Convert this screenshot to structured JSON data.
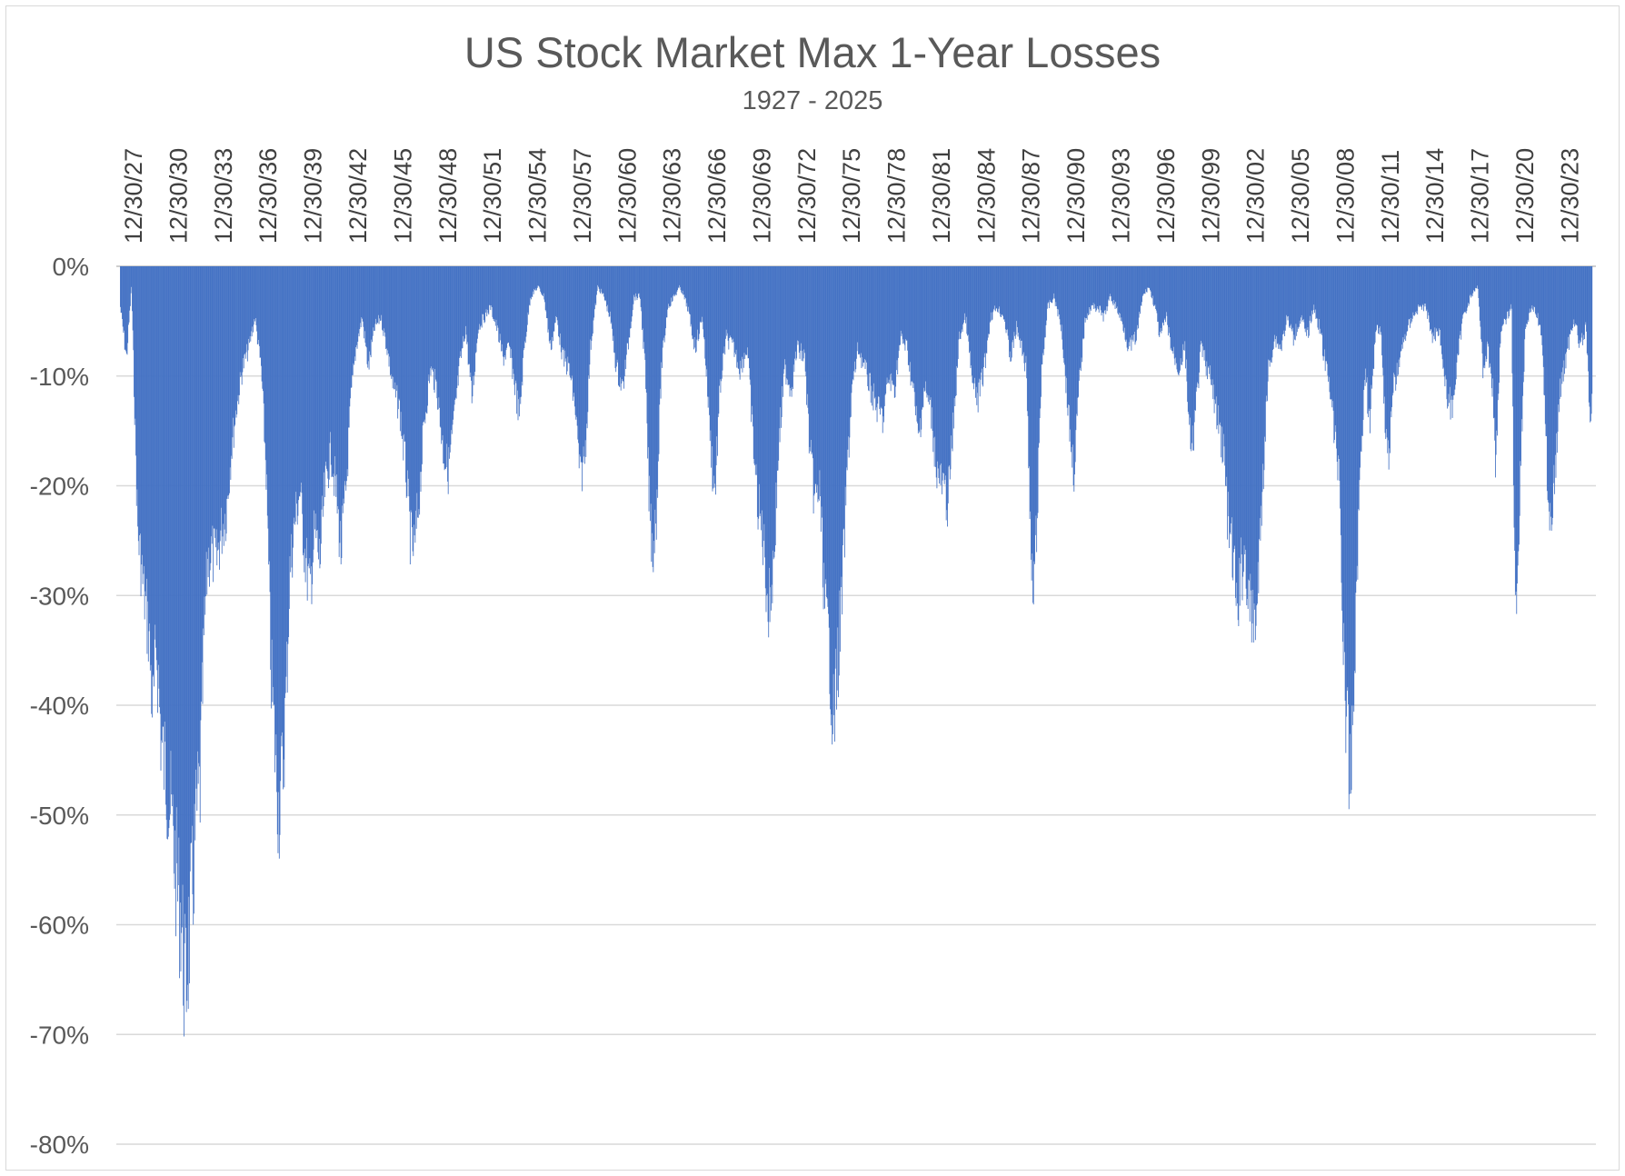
{
  "chart_data": {
    "type": "bar",
    "title": "US Stock Market Max 1-Year Losses",
    "subtitle": "1927 - 2025",
    "xlabel": "",
    "ylabel": "",
    "ylim": [
      -0.8,
      0
    ],
    "y_ticks": [
      0,
      -0.1,
      -0.2,
      -0.3,
      -0.4,
      -0.5,
      -0.6,
      -0.7,
      -0.8
    ],
    "y_tick_labels": [
      "0%",
      "-10%",
      "-20%",
      "-30%",
      "-40%",
      "-50%",
      "-60%",
      "-70%",
      "-80%"
    ],
    "x_range": [
      "1927-01",
      "2025-06"
    ],
    "x_tick_labels": [
      "12/30/27",
      "12/30/30",
      "12/30/33",
      "12/30/36",
      "12/30/39",
      "12/30/42",
      "12/30/45",
      "12/30/48",
      "12/30/51",
      "12/30/54",
      "12/30/57",
      "12/30/60",
      "12/30/63",
      "12/30/66",
      "12/30/69",
      "12/30/72",
      "12/30/75",
      "12/30/78",
      "12/30/81",
      "12/30/84",
      "12/30/87",
      "12/30/90",
      "12/30/93",
      "12/30/96",
      "12/30/99",
      "12/30/02",
      "12/30/05",
      "12/30/08",
      "12/30/11",
      "12/30/14",
      "12/30/17",
      "12/30/20",
      "12/30/23"
    ],
    "x_tick_dates": [
      "1927-12",
      "1930-12",
      "1933-12",
      "1936-12",
      "1939-12",
      "1942-12",
      "1945-12",
      "1948-12",
      "1951-12",
      "1954-12",
      "1957-12",
      "1960-12",
      "1963-12",
      "1966-12",
      "1969-12",
      "1972-12",
      "1975-12",
      "1978-12",
      "1981-12",
      "1984-12",
      "1987-12",
      "1990-12",
      "1993-12",
      "1996-12",
      "1999-12",
      "2002-12",
      "2005-12",
      "2008-12",
      "2011-12",
      "2014-12",
      "2017-12",
      "2020-12",
      "2023-12"
    ],
    "series": [
      {
        "color": "#4472c4",
        "points": [
          [
            "1927-01",
            -0.04
          ],
          [
            "1927-06",
            -0.09
          ],
          [
            "1927-10",
            -0.02
          ],
          [
            "1928-03",
            -0.26
          ],
          [
            "1928-08",
            -0.32
          ],
          [
            "1928-12",
            -0.36
          ],
          [
            "1929-03",
            -0.44
          ],
          [
            "1929-06",
            -0.37
          ],
          [
            "1929-10",
            -0.47
          ],
          [
            "1930-02",
            -0.5
          ],
          [
            "1930-06",
            -0.54
          ],
          [
            "1930-10",
            -0.6
          ],
          [
            "1931-02",
            -0.64
          ],
          [
            "1931-05",
            -0.715
          ],
          [
            "1931-08",
            -0.66
          ],
          [
            "1931-11",
            -0.61
          ],
          [
            "1932-02",
            -0.54
          ],
          [
            "1932-05",
            -0.51
          ],
          [
            "1932-08",
            -0.37
          ],
          [
            "1932-11",
            -0.29
          ],
          [
            "1933-02",
            -0.28
          ],
          [
            "1933-06",
            -0.29
          ],
          [
            "1933-10",
            -0.26
          ],
          [
            "1934-02",
            -0.24
          ],
          [
            "1934-06",
            -0.18
          ],
          [
            "1934-10",
            -0.14
          ],
          [
            "1935-03",
            -0.1
          ],
          [
            "1935-08",
            -0.08
          ],
          [
            "1936-01",
            -0.05
          ],
          [
            "1936-06",
            -0.1
          ],
          [
            "1936-10",
            -0.2
          ],
          [
            "1937-02",
            -0.4
          ],
          [
            "1937-05",
            -0.47
          ],
          [
            "1937-08",
            -0.53
          ],
          [
            "1937-11",
            -0.5
          ],
          [
            "1938-02",
            -0.42
          ],
          [
            "1938-05",
            -0.3
          ],
          [
            "1938-09",
            -0.25
          ],
          [
            "1939-01",
            -0.22
          ],
          [
            "1939-05",
            -0.28
          ],
          [
            "1939-09",
            -0.32
          ],
          [
            "1940-01",
            -0.26
          ],
          [
            "1940-05",
            -0.29
          ],
          [
            "1940-09",
            -0.22
          ],
          [
            "1941-02",
            -0.18
          ],
          [
            "1941-06",
            -0.22
          ],
          [
            "1941-10",
            -0.28
          ],
          [
            "1942-02",
            -0.22
          ],
          [
            "1942-06",
            -0.13
          ],
          [
            "1942-10",
            -0.08
          ],
          [
            "1943-03",
            -0.05
          ],
          [
            "1943-08",
            -0.1
          ],
          [
            "1944-01",
            -0.06
          ],
          [
            "1944-06",
            -0.05
          ],
          [
            "1944-11",
            -0.08
          ],
          [
            "1945-04",
            -0.12
          ],
          [
            "1945-09",
            -0.14
          ],
          [
            "1946-02",
            -0.2
          ],
          [
            "1946-06",
            -0.27
          ],
          [
            "1946-09",
            -0.28
          ],
          [
            "1947-01",
            -0.22
          ],
          [
            "1947-05",
            -0.15
          ],
          [
            "1947-10",
            -0.1
          ],
          [
            "1948-03",
            -0.12
          ],
          [
            "1948-08",
            -0.18
          ],
          [
            "1948-12",
            -0.2
          ],
          [
            "1949-04",
            -0.16
          ],
          [
            "1949-09",
            -0.1
          ],
          [
            "1950-02",
            -0.06
          ],
          [
            "1950-07",
            -0.13
          ],
          [
            "1950-12",
            -0.06
          ],
          [
            "1951-05",
            -0.05
          ],
          [
            "1951-10",
            -0.04
          ],
          [
            "1952-03",
            -0.06
          ],
          [
            "1952-08",
            -0.09
          ],
          [
            "1953-01",
            -0.08
          ],
          [
            "1953-06",
            -0.12
          ],
          [
            "1953-09",
            -0.15
          ],
          [
            "1954-01",
            -0.08
          ],
          [
            "1954-06",
            -0.03
          ],
          [
            "1954-12",
            -0.02
          ],
          [
            "1955-05",
            -0.03
          ],
          [
            "1955-10",
            -0.08
          ],
          [
            "1956-03",
            -0.05
          ],
          [
            "1956-08",
            -0.09
          ],
          [
            "1957-01",
            -0.1
          ],
          [
            "1957-06",
            -0.14
          ],
          [
            "1957-10",
            -0.21
          ],
          [
            "1958-02",
            -0.18
          ],
          [
            "1958-06",
            -0.08
          ],
          [
            "1958-12",
            -0.02
          ],
          [
            "1959-05",
            -0.03
          ],
          [
            "1959-10",
            -0.05
          ],
          [
            "1960-03",
            -0.1
          ],
          [
            "1960-08",
            -0.12
          ],
          [
            "1960-12",
            -0.08
          ],
          [
            "1961-05",
            -0.03
          ],
          [
            "1961-10",
            -0.03
          ],
          [
            "1962-02",
            -0.1
          ],
          [
            "1962-05",
            -0.22
          ],
          [
            "1962-08",
            -0.28
          ],
          [
            "1962-11",
            -0.24
          ],
          [
            "1963-03",
            -0.1
          ],
          [
            "1963-08",
            -0.04
          ],
          [
            "1964-01",
            -0.03
          ],
          [
            "1964-06",
            -0.02
          ],
          [
            "1964-12",
            -0.04
          ],
          [
            "1965-06",
            -0.08
          ],
          [
            "1965-12",
            -0.05
          ],
          [
            "1966-04",
            -0.12
          ],
          [
            "1966-08",
            -0.2
          ],
          [
            "1966-10",
            -0.22
          ],
          [
            "1967-02",
            -0.12
          ],
          [
            "1967-07",
            -0.07
          ],
          [
            "1968-01",
            -0.08
          ],
          [
            "1968-06",
            -0.1
          ],
          [
            "1968-12",
            -0.08
          ],
          [
            "1969-04",
            -0.16
          ],
          [
            "1969-08",
            -0.23
          ],
          [
            "1970-01",
            -0.27
          ],
          [
            "1970-05",
            -0.34
          ],
          [
            "1970-09",
            -0.29
          ],
          [
            "1971-01",
            -0.18
          ],
          [
            "1971-06",
            -0.1
          ],
          [
            "1971-11",
            -0.12
          ],
          [
            "1972-04",
            -0.08
          ],
          [
            "1972-10",
            -0.09
          ],
          [
            "1973-02",
            -0.18
          ],
          [
            "1973-06",
            -0.23
          ],
          [
            "1973-10",
            -0.22
          ],
          [
            "1974-02",
            -0.33
          ],
          [
            "1974-06",
            -0.38
          ],
          [
            "1974-09",
            -0.45
          ],
          [
            "1974-12",
            -0.4
          ],
          [
            "1975-04",
            -0.32
          ],
          [
            "1975-08",
            -0.2
          ],
          [
            "1975-12",
            -0.12
          ],
          [
            "1976-05",
            -0.08
          ],
          [
            "1976-10",
            -0.1
          ],
          [
            "1977-03",
            -0.12
          ],
          [
            "1977-08",
            -0.14
          ],
          [
            "1978-01",
            -0.15
          ],
          [
            "1978-05",
            -0.11
          ],
          [
            "1978-10",
            -0.12
          ],
          [
            "1979-03",
            -0.07
          ],
          [
            "1979-08",
            -0.08
          ],
          [
            "1980-02",
            -0.13
          ],
          [
            "1980-05",
            -0.17
          ],
          [
            "1980-10",
            -0.12
          ],
          [
            "1981-03",
            -0.14
          ],
          [
            "1981-08",
            -0.2
          ],
          [
            "1982-01",
            -0.22
          ],
          [
            "1982-05",
            -0.23
          ],
          [
            "1982-09",
            -0.16
          ],
          [
            "1983-02",
            -0.07
          ],
          [
            "1983-07",
            -0.05
          ],
          [
            "1984-01",
            -0.12
          ],
          [
            "1984-05",
            -0.13
          ],
          [
            "1984-10",
            -0.1
          ],
          [
            "1985-03",
            -0.05
          ],
          [
            "1985-08",
            -0.04
          ],
          [
            "1986-02",
            -0.05
          ],
          [
            "1986-07",
            -0.09
          ],
          [
            "1986-12",
            -0.06
          ],
          [
            "1987-04",
            -0.08
          ],
          [
            "1987-08",
            -0.1
          ],
          [
            "1987-11",
            -0.27
          ],
          [
            "1988-01",
            -0.33
          ],
          [
            "1988-04",
            -0.26
          ],
          [
            "1988-08",
            -0.1
          ],
          [
            "1989-01",
            -0.04
          ],
          [
            "1989-06",
            -0.03
          ],
          [
            "1989-12",
            -0.06
          ],
          [
            "1990-04",
            -0.12
          ],
          [
            "1990-08",
            -0.18
          ],
          [
            "1990-10",
            -0.2
          ],
          [
            "1991-02",
            -0.12
          ],
          [
            "1991-07",
            -0.05
          ],
          [
            "1991-12",
            -0.04
          ],
          [
            "1992-05",
            -0.04
          ],
          [
            "1992-10",
            -0.05
          ],
          [
            "1993-03",
            -0.03
          ],
          [
            "1993-08",
            -0.04
          ],
          [
            "1994-02",
            -0.06
          ],
          [
            "1994-06",
            -0.08
          ],
          [
            "1994-12",
            -0.07
          ],
          [
            "1995-05",
            -0.03
          ],
          [
            "1995-10",
            -0.02
          ],
          [
            "1996-03",
            -0.04
          ],
          [
            "1996-07",
            -0.07
          ],
          [
            "1996-12",
            -0.05
          ],
          [
            "1997-04",
            -0.08
          ],
          [
            "1997-10",
            -0.1
          ],
          [
            "1998-03",
            -0.08
          ],
          [
            "1998-08",
            -0.19
          ],
          [
            "1998-11",
            -0.15
          ],
          [
            "1999-04",
            -0.08
          ],
          [
            "1999-09",
            -0.1
          ],
          [
            "2000-01",
            -0.12
          ],
          [
            "2000-05",
            -0.15
          ],
          [
            "2000-10",
            -0.18
          ],
          [
            "2001-02",
            -0.26
          ],
          [
            "2001-05",
            -0.28
          ],
          [
            "2001-09",
            -0.34
          ],
          [
            "2001-12",
            -0.3
          ],
          [
            "2002-03",
            -0.28
          ],
          [
            "2002-07",
            -0.34
          ],
          [
            "2002-10",
            -0.35
          ],
          [
            "2003-01",
            -0.33
          ],
          [
            "2003-05",
            -0.22
          ],
          [
            "2003-10",
            -0.1
          ],
          [
            "2004-03",
            -0.07
          ],
          [
            "2004-08",
            -0.08
          ],
          [
            "2005-01",
            -0.05
          ],
          [
            "2005-06",
            -0.07
          ],
          [
            "2005-12",
            -0.05
          ],
          [
            "2006-05",
            -0.07
          ],
          [
            "2006-10",
            -0.04
          ],
          [
            "2007-03",
            -0.06
          ],
          [
            "2007-08",
            -0.1
          ],
          [
            "2007-12",
            -0.12
          ],
          [
            "2008-03",
            -0.17
          ],
          [
            "2008-07",
            -0.2
          ],
          [
            "2008-10",
            -0.38
          ],
          [
            "2009-01",
            -0.45
          ],
          [
            "2009-03",
            -0.52
          ],
          [
            "2009-06",
            -0.43
          ],
          [
            "2009-09",
            -0.3
          ],
          [
            "2009-12",
            -0.18
          ],
          [
            "2010-04",
            -0.1
          ],
          [
            "2010-07",
            -0.16
          ],
          [
            "2010-12",
            -0.06
          ],
          [
            "2011-04",
            -0.06
          ],
          [
            "2011-08",
            -0.16
          ],
          [
            "2011-10",
            -0.19
          ],
          [
            "2012-02",
            -0.12
          ],
          [
            "2012-06",
            -0.1
          ],
          [
            "2012-11",
            -0.07
          ],
          [
            "2013-05",
            -0.05
          ],
          [
            "2013-11",
            -0.04
          ],
          [
            "2014-04",
            -0.04
          ],
          [
            "2014-10",
            -0.07
          ],
          [
            "2015-03",
            -0.06
          ],
          [
            "2015-08",
            -0.12
          ],
          [
            "2016-01",
            -0.14
          ],
          [
            "2016-05",
            -0.1
          ],
          [
            "2016-10",
            -0.05
          ],
          [
            "2017-04",
            -0.03
          ],
          [
            "2017-10",
            -0.02
          ],
          [
            "2018-02",
            -0.1
          ],
          [
            "2018-06",
            -0.08
          ],
          [
            "2018-10",
            -0.12
          ],
          [
            "2018-12",
            -0.2
          ],
          [
            "2019-04",
            -0.07
          ],
          [
            "2019-09",
            -0.05
          ],
          [
            "2020-01",
            -0.04
          ],
          [
            "2020-03",
            -0.26
          ],
          [
            "2020-05",
            -0.34
          ],
          [
            "2020-08",
            -0.2
          ],
          [
            "2020-12",
            -0.06
          ],
          [
            "2021-05",
            -0.04
          ],
          [
            "2021-10",
            -0.05
          ],
          [
            "2022-02",
            -0.08
          ],
          [
            "2022-06",
            -0.22
          ],
          [
            "2022-09",
            -0.25
          ],
          [
            "2022-12",
            -0.2
          ],
          [
            "2023-04",
            -0.12
          ],
          [
            "2023-10",
            -0.08
          ],
          [
            "2024-03",
            -0.05
          ],
          [
            "2024-08",
            -0.08
          ],
          [
            "2025-01",
            -0.06
          ],
          [
            "2025-04",
            -0.17
          ],
          [
            "2025-06",
            -0.12
          ]
        ]
      }
    ],
    "grid": true,
    "legend": "none"
  }
}
